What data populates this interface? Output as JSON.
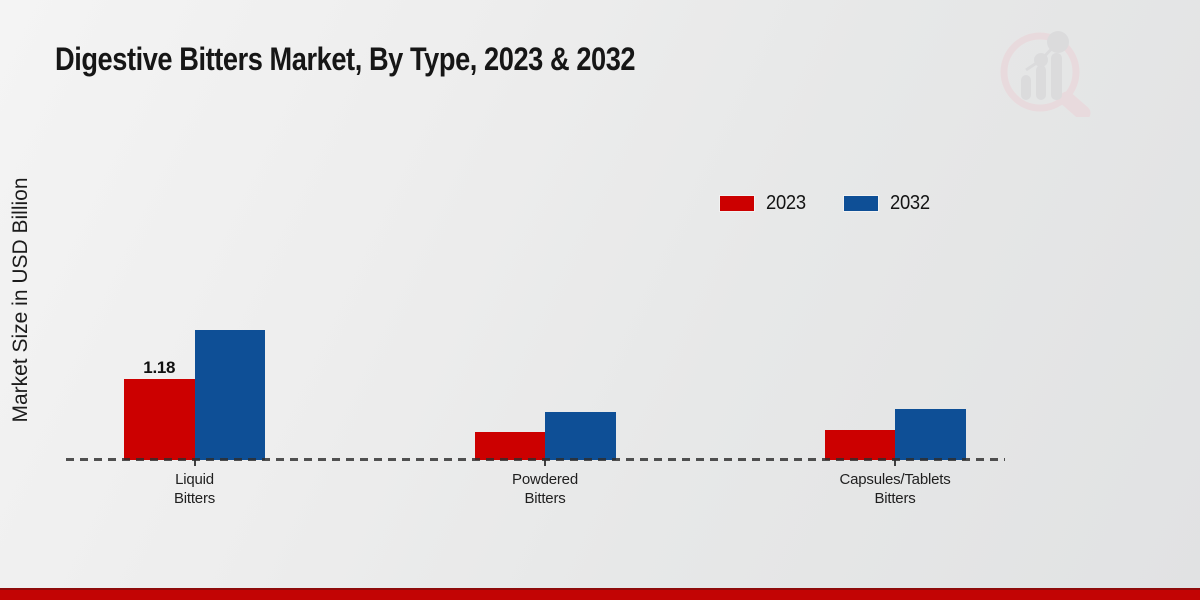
{
  "chart": {
    "title": "Digestive Bitters Market, By Type, 2023 & 2032"
  },
  "chart_data": {
    "type": "bar",
    "title": "Digestive Bitters Market, By Type, 2023 & 2032",
    "xlabel": "",
    "ylabel": "Market Size in USD Billion",
    "unit": "USD Billion",
    "categories": [
      "Liquid Bitters",
      "Powdered Bitters",
      "Capsules/Tablets Bitters"
    ],
    "category_label_lines": [
      [
        "Liquid",
        "Bitters"
      ],
      [
        "Powdered",
        "Bitters"
      ],
      [
        "Capsules/Tablets",
        "Bitters"
      ]
    ],
    "series": [
      {
        "name": "2023",
        "color": "#cc0000",
        "values": [
          1.18,
          0.41,
          0.44
        ]
      },
      {
        "name": "2032",
        "color": "#0e4f96",
        "values": [
          1.89,
          0.7,
          0.74
        ]
      }
    ],
    "value_labels": [
      {
        "series": "2023",
        "category": "Liquid Bitters",
        "text": "1.18"
      }
    ],
    "ylim": [
      0,
      2.2
    ],
    "y_axis_ticks_visible": false,
    "grid": false,
    "baseline_style": "dashed",
    "legend_position": "top-right"
  },
  "branding": {
    "logo_name": "market-research-magnifier-logo",
    "footer_band_color": "#c20404"
  },
  "colors": {
    "series_2023": "#cc0000",
    "series_2032": "#0e4f96",
    "background": "#ebebeb",
    "baseline": "#2d2d2d"
  }
}
